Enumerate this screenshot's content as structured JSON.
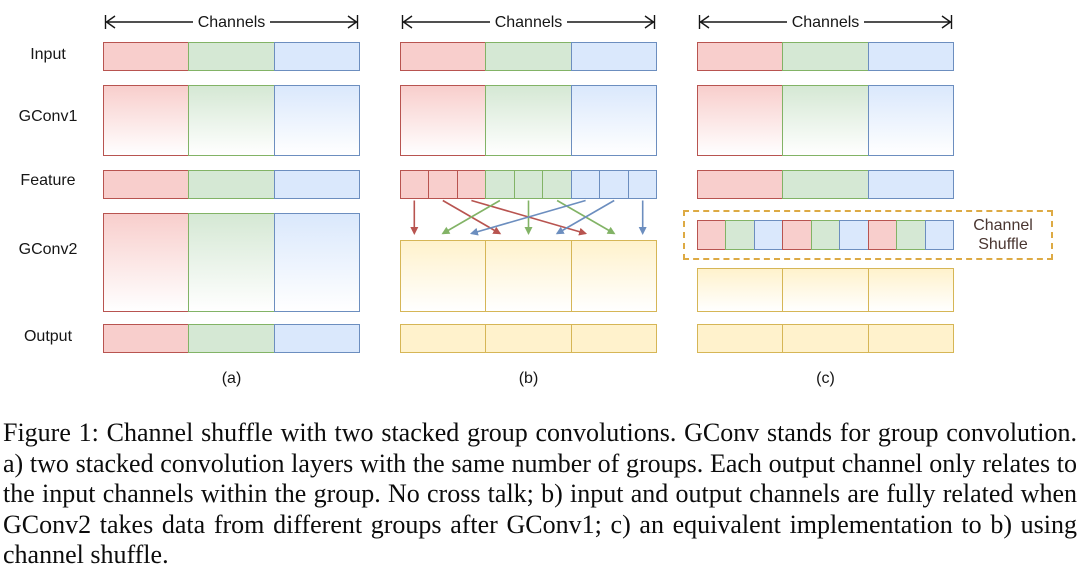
{
  "palette": {
    "red_fill": "#f8cecc",
    "red_border": "#b85450",
    "green_fill": "#d5e8d4",
    "green_border": "#82b366",
    "blue_fill": "#dae8fc",
    "blue_border": "#6c8ebf",
    "yellow_fill": "#fff2cc",
    "yellow_border": "#d6b656",
    "shuffle_box_border": "#ddaa44",
    "shuffle_text_color": "#4a3631"
  },
  "figure": {
    "channels_label": "Channels",
    "row_labels": [
      "Input",
      "GConv1",
      "Feature",
      "GConv2",
      "Output"
    ],
    "group_order": [
      "red",
      "green",
      "blue"
    ],
    "yellow_row": [
      "yellow",
      "yellow",
      "yellow"
    ],
    "panels": {
      "a": {
        "label": "(a)"
      },
      "b": {
        "label": "(b)",
        "feature_segments": [
          "red",
          "red",
          "red",
          "green",
          "green",
          "green",
          "blue",
          "blue",
          "blue"
        ],
        "arrows": [
          {
            "from": 0,
            "to": 0,
            "color": "red"
          },
          {
            "from": 1,
            "to": 3,
            "color": "red"
          },
          {
            "from": 2,
            "to": 6,
            "color": "red"
          },
          {
            "from": 3,
            "to": 1,
            "color": "green"
          },
          {
            "from": 4,
            "to": 4,
            "color": "green"
          },
          {
            "from": 5,
            "to": 7,
            "color": "green"
          },
          {
            "from": 6,
            "to": 2,
            "color": "blue"
          },
          {
            "from": 7,
            "to": 5,
            "color": "blue"
          },
          {
            "from": 8,
            "to": 8,
            "color": "blue"
          }
        ]
      },
      "c": {
        "label": "(c)",
        "shuffle_label": "Channel Shuffle",
        "shuffled_segments": [
          "red",
          "green",
          "blue",
          "red",
          "green",
          "blue",
          "red",
          "green",
          "blue"
        ]
      }
    }
  },
  "caption": "Figure 1: Channel shuffle with two stacked group convolutions. GConv stands for group convolution. a) two stacked convolution layers with the same number of groups. Each output channel only relates to the input channels within the group. No cross talk; b) input and output channels are fully related when GConv2 takes data from different groups after GConv1; c) an equivalent implementation to b) using channel shuffle."
}
